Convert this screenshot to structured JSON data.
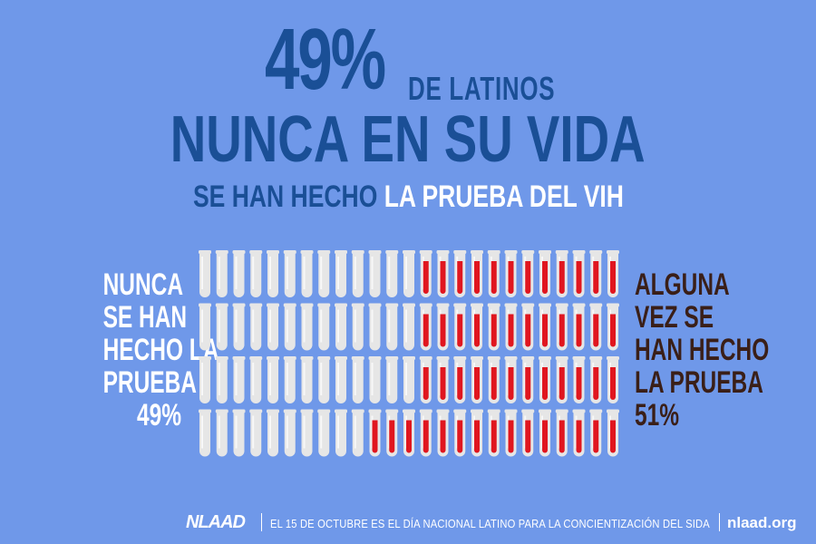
{
  "headline": {
    "stat": "49%",
    "line1_rest": "DE LATINOS",
    "line2": "NUNCA EN SU VIDA",
    "line3_a": "SE HAN HECHO",
    "line3_b": "LA PRUEBA DEL VIH"
  },
  "left_label": [
    "NUNCA",
    "SE HAN",
    "HECHO LA",
    "PRUEBA",
    "49%"
  ],
  "right_label": [
    "ALGUNA",
    "VEZ SE",
    "HAN HECHO",
    "LA PRUEBA",
    "51%"
  ],
  "tubes": {
    "rows": 4,
    "per_row": 25,
    "total": 100,
    "filled": 51,
    "empty": 49
  },
  "footer": {
    "logo": "NLAAD",
    "text": "EL 15 DE OCTUBRE ES EL DÍA NACIONAL LATINO PARA LA CONCIENTIZACIÓN DEL SIDA",
    "url": "nlaad.org"
  },
  "colors": {
    "background": "#6f98e9",
    "headline": "#1a4f96",
    "highlight": "#ffffff",
    "tube_body": "#e6e6e6",
    "tube_fill": "#e0161f",
    "right_label": "#3a1f18"
  }
}
